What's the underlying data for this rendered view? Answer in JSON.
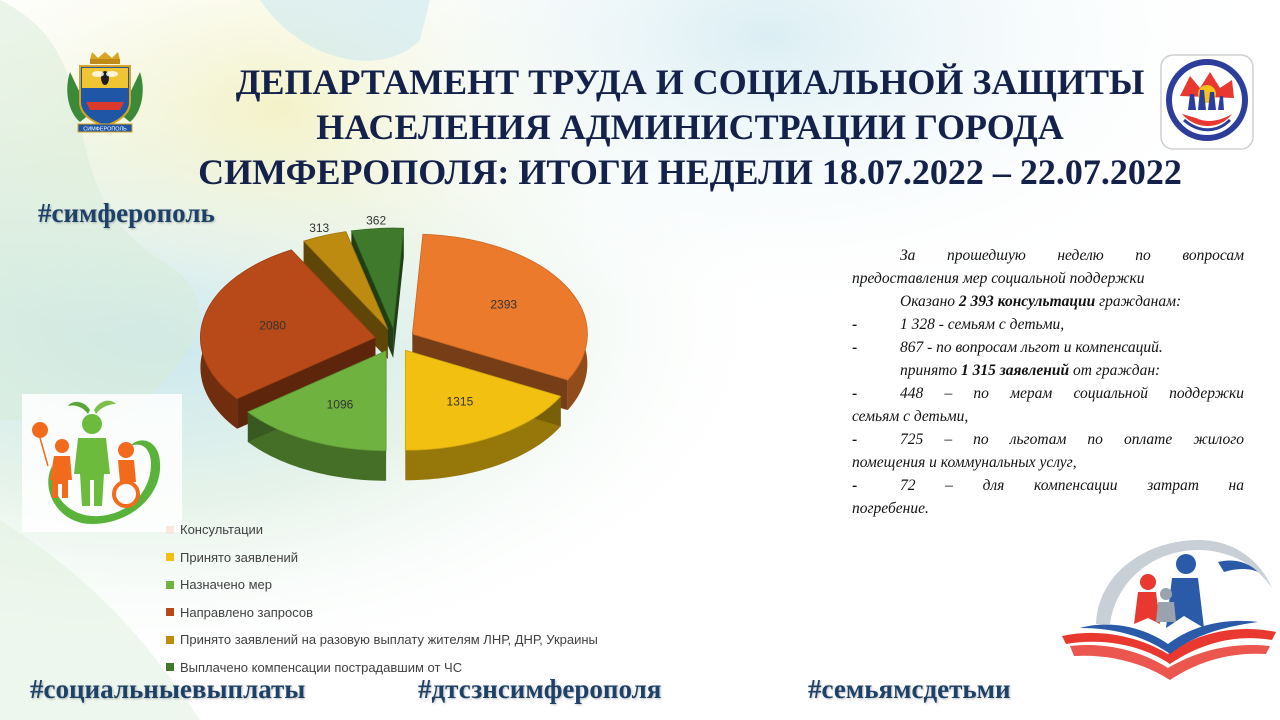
{
  "header": {
    "title_lines": [
      "ДЕПАРТАМЕНТ ТРУДА И СОЦИАЛЬНОЙ ЗАЩИТЫ",
      "НАСЕЛЕНИЯ АДМИНИСТРАЦИИ ГОРОДА",
      "СИМФЕРОПОЛЯ: ИТОГИ НЕДЕЛИ 18.07.2022 – 22.07.2022"
    ],
    "coat_label": "СИМФЕРОПОЛЬ"
  },
  "hashtags": {
    "top": "#симферополь",
    "bottom1": "#социальныевыплаты",
    "bottom2": "#дтсзнсимферополя",
    "bottom3": "#семьямсдетьми"
  },
  "summary": {
    "intro": "За прошедшую неделю по вопросам предоставления мер социальной поддержки",
    "consult_pre": "Оказано ",
    "consult_bold": "2 393 консультации",
    "consult_post": " гражданам:",
    "consult_items": [
      "1 328 - семьям с детьми,",
      "867 - по вопросам льгот и компенсаций."
    ],
    "apps_pre": "принято ",
    "apps_bold": "1 315 заявлений",
    "apps_post": " от граждан:",
    "app_items": [
      {
        "first": "448 – по мерам социальной поддержки",
        "rest": "семьям с детьми,"
      },
      {
        "first": "725 – по льготам по оплате жилого",
        "rest": "помещения и коммунальных услуг,"
      },
      {
        "first": "72 – для компенсации затрат на",
        "rest": "погребение."
      }
    ],
    "dash": "-"
  },
  "chart_data": {
    "type": "pie",
    "style": "3d exploded pie",
    "categories": [
      "Консультации",
      "Принято заявлений",
      "Назначено мер",
      "Направлено запросов",
      "Принято заявлений на разовую выплату жителям ЛНР, ДНР, Украины",
      "Выплачено компенсации пострадавшим от ЧС"
    ],
    "values": [
      2393,
      1315,
      1096,
      2080,
      313,
      362
    ],
    "colors": [
      "#ec7a2c",
      "#f2c010",
      "#6fb23f",
      "#b74a18",
      "#bd8b10",
      "#3f7a2c"
    ],
    "legend_position": "bottom-left"
  }
}
